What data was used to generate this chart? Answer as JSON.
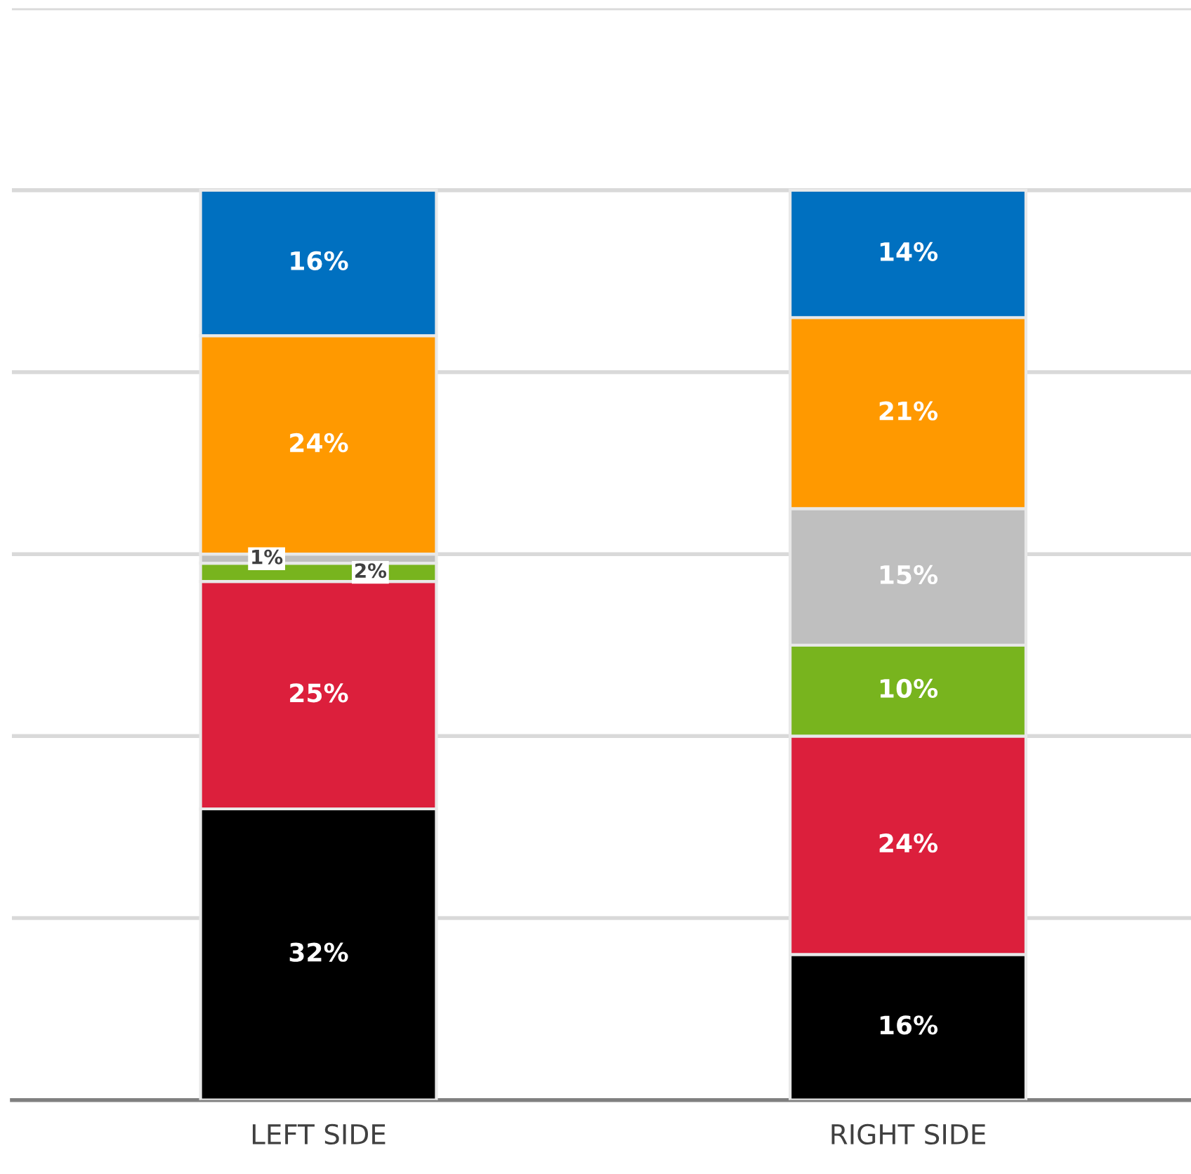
{
  "chart_data": {
    "type": "bar",
    "stacked": true,
    "categories": [
      "LEFT SIDE",
      "RIGHT SIDE"
    ],
    "series": [
      {
        "color": "#000000",
        "values": [
          32,
          16
        ],
        "value_labels": [
          "32%",
          "16%"
        ]
      },
      {
        "color": "#dc1f3c",
        "values": [
          25,
          24
        ],
        "value_labels": [
          "25%",
          "24%"
        ]
      },
      {
        "color": "#78b41e",
        "values": [
          2,
          10
        ],
        "value_labels": [
          "2%",
          "10%"
        ]
      },
      {
        "color": "#bfbfbf",
        "values": [
          1,
          15
        ],
        "value_labels": [
          "1%",
          "15%"
        ]
      },
      {
        "color": "#ff9900",
        "values": [
          24,
          21
        ],
        "value_labels": [
          "24%",
          "21%"
        ]
      },
      {
        "color": "#0070c0",
        "values": [
          16,
          14
        ],
        "value_labels": [
          "16%",
          "14%"
        ]
      }
    ],
    "ylim": [
      0,
      120
    ],
    "yticks": [
      {
        "value": 0,
        "label": null
      },
      {
        "value": 20,
        "label": null
      },
      {
        "value": 40,
        "label": null
      },
      {
        "value": 60,
        "label": null
      },
      {
        "value": 80,
        "label": null
      },
      {
        "value": 100,
        "label": null
      },
      {
        "value": 120,
        "label": null
      }
    ],
    "grid": "y",
    "tick_labels": "x"
  }
}
